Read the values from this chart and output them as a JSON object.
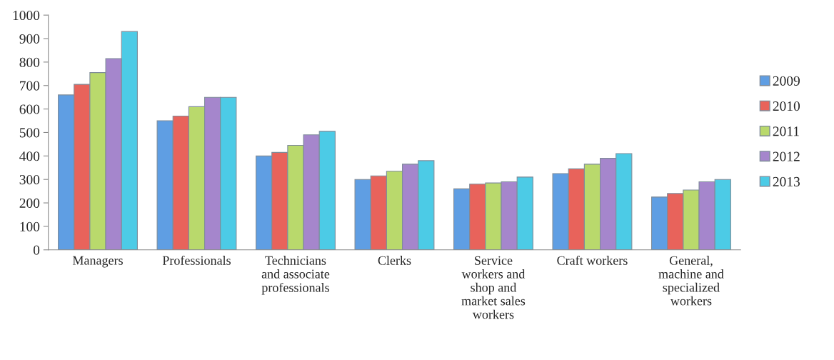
{
  "chart_data": {
    "type": "bar",
    "categories": [
      "Managers",
      "Professionals",
      "Technicians and associate professionals",
      "Clerks",
      "Service workers and shop and market sales workers",
      "Craft workers",
      "General, machine and specialized workers"
    ],
    "series": [
      {
        "name": "2009",
        "color": "#5f9ee3",
        "values": [
          660,
          550,
          400,
          300,
          260,
          325,
          225
        ]
      },
      {
        "name": "2010",
        "color": "#e8635b",
        "values": [
          705,
          570,
          415,
          315,
          280,
          345,
          240
        ]
      },
      {
        "name": "2011",
        "color": "#b9d96c",
        "values": [
          755,
          610,
          445,
          335,
          285,
          365,
          255
        ]
      },
      {
        "name": "2012",
        "color": "#a586cc",
        "values": [
          815,
          650,
          490,
          365,
          290,
          390,
          290
        ]
      },
      {
        "name": "2013",
        "color": "#4ccbe6",
        "values": [
          930,
          650,
          505,
          380,
          310,
          410,
          300
        ]
      }
    ],
    "ylim": [
      0,
      1000
    ],
    "yticks": [
      0,
      100,
      200,
      300,
      400,
      500,
      600,
      700,
      800,
      900,
      1000
    ],
    "grid": false,
    "legend": "right"
  }
}
